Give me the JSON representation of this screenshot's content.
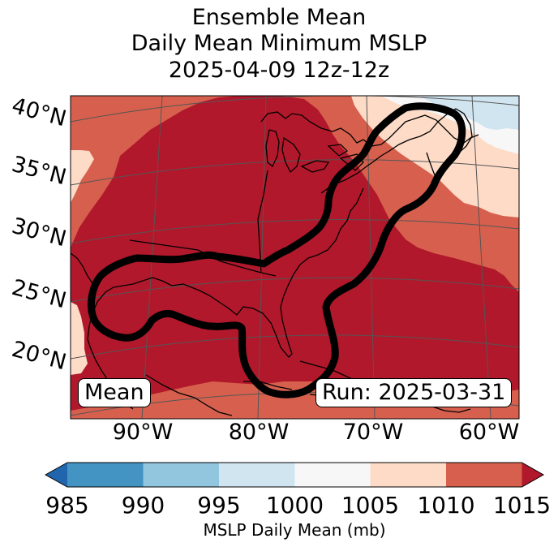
{
  "title": {
    "line1": "Ensemble Mean",
    "line2": "Daily Mean Minimum MSLP",
    "line3": "2025-04-09 12z-12z"
  },
  "map": {
    "latitude_labels": [
      "40°N",
      "35°N",
      "30°N",
      "25°N",
      "20°N"
    ],
    "longitude_labels": [
      "90°W",
      "80°W",
      "70°W",
      "60°W"
    ],
    "mean_label": "Mean",
    "run_label": "Run: 2025-03-31",
    "colors": {
      "lt_985": "#2166ac",
      "985_990": "#4393c3",
      "990_995": "#92c5de",
      "995_1000": "#d1e5f0",
      "1000_1005": "#f7f7f7",
      "1005_1010": "#fddbc7",
      "1010_1015": "#d6604d",
      "gt_1015": "#b2182b",
      "contour": "#000000",
      "land_outline": "#000000",
      "graticule": "#555555"
    }
  },
  "colorbar": {
    "ticks": [
      "985",
      "990",
      "995",
      "1000",
      "1005",
      "1010",
      "1015"
    ],
    "label": "MSLP Daily Mean (mb)"
  }
}
